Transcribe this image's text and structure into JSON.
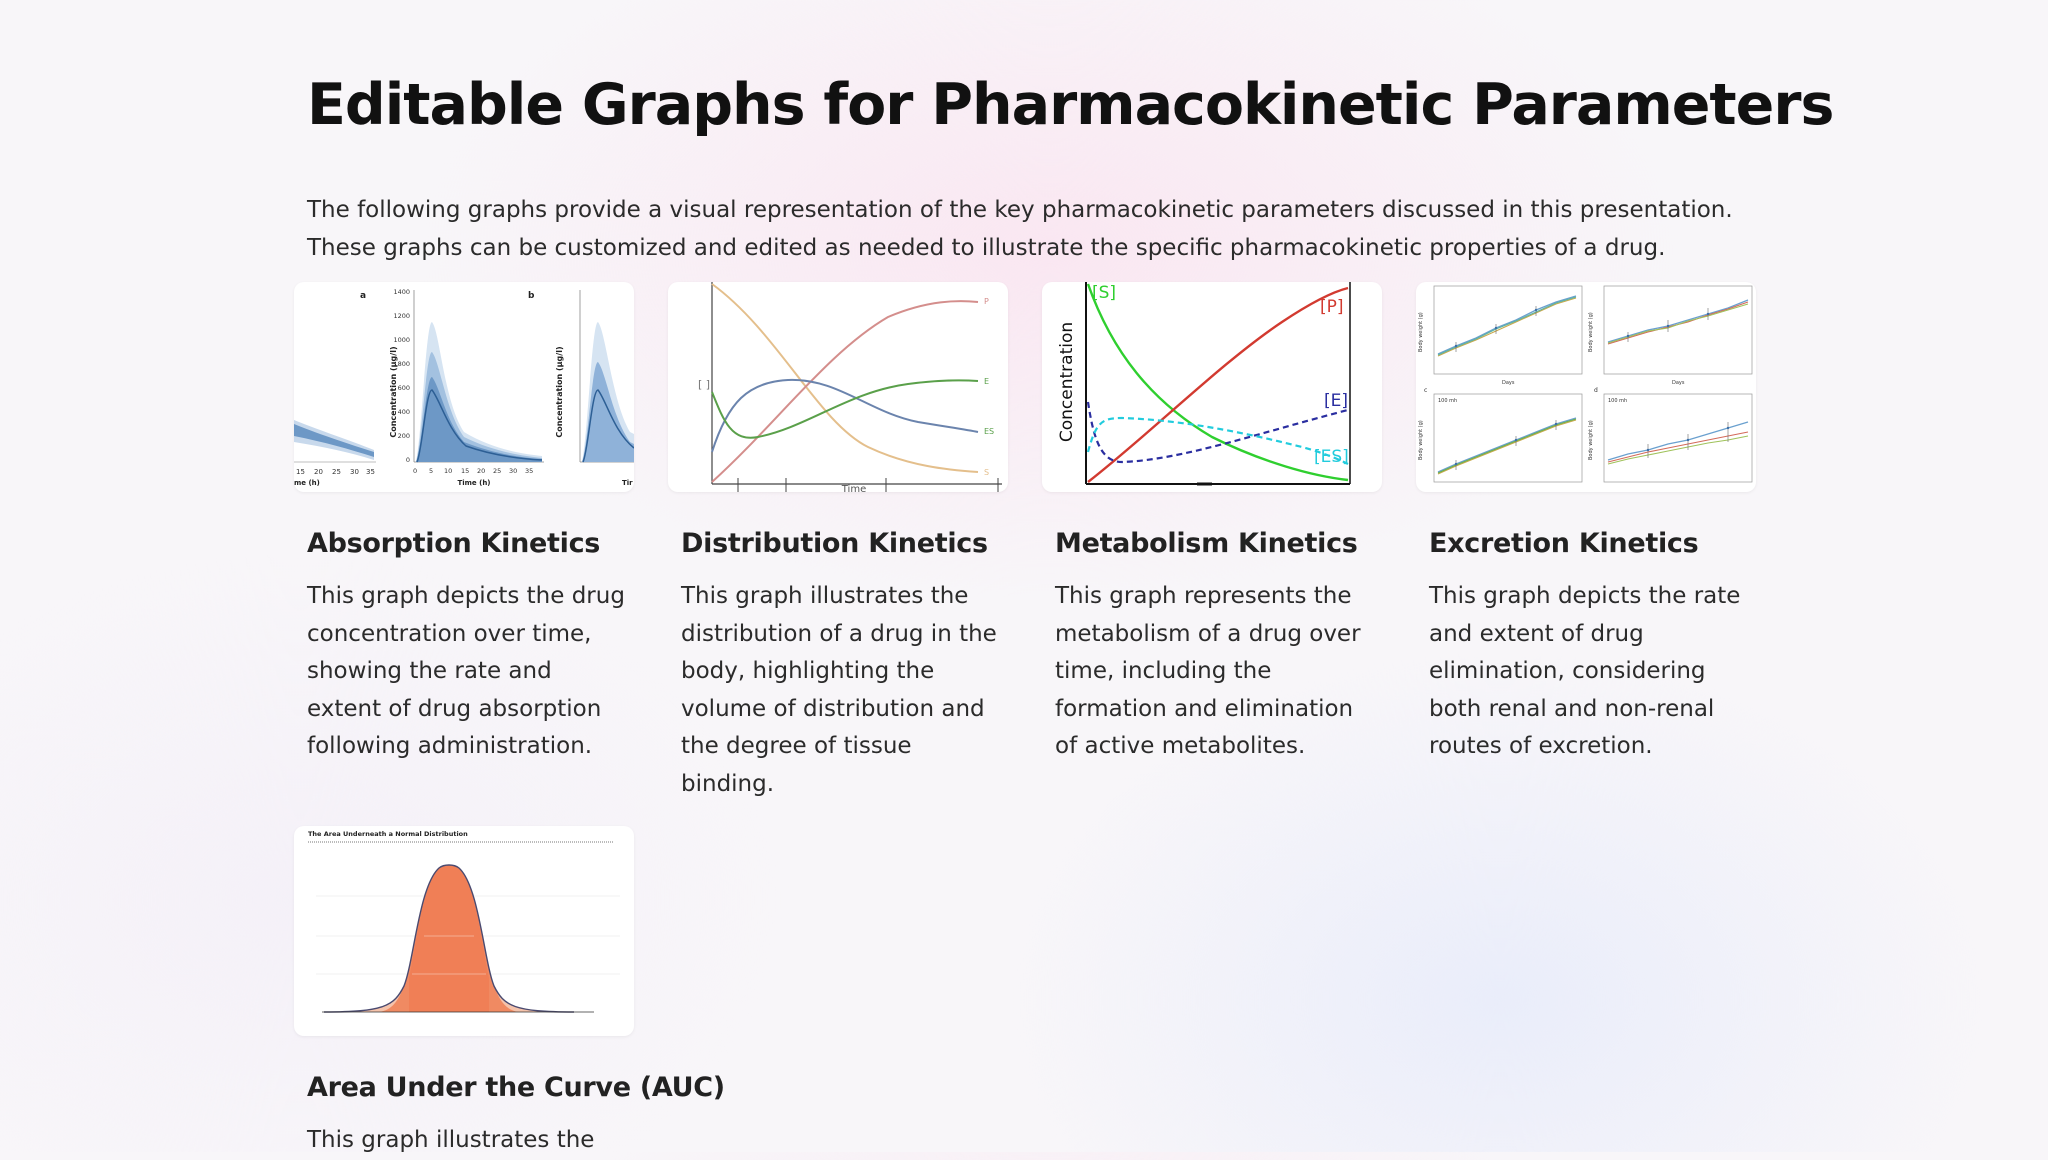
{
  "page": {
    "title": "Editable Graphs for Pharmacokinetic Parameters",
    "intro": "The following graphs provide a visual representation of the key pharmacokinetic parameters discussed in this presentation. These graphs can be customized and edited as needed to illustrate the specific pharmacokinetic properties of a drug."
  },
  "cards": [
    {
      "title": "Absorption Kinetics",
      "description": "This graph depicts the drug concentration over time, showing the rate and extent of drug absorption following administration.",
      "image": {
        "panel_a": "a",
        "panel_b": "b",
        "ylabel": "Concentration (μg/l)",
        "xlabel": "Time (h)",
        "xlabel_left_cut": "me (h)",
        "xlabel_right_cut": "Tir",
        "y_ticks": [
          "1400",
          "1200",
          "1000",
          "800",
          "600",
          "400",
          "200",
          "0"
        ],
        "x_ticks": [
          "0",
          "5",
          "10",
          "15",
          "20",
          "25",
          "30",
          "35"
        ],
        "left_x_ticks": [
          "15",
          "20",
          "25",
          "30",
          "35"
        ]
      }
    },
    {
      "title": "Distribution Kinetics",
      "description": "This graph illustrates the distribution of a drug in the body, highlighting the volume of distribution and the degree of tissue binding.",
      "image": {
        "ylabel": "[ ]",
        "xlabel": "Time",
        "labels": {
          "P": "P",
          "E": "E",
          "ES": "ES",
          "S": "S"
        }
      }
    },
    {
      "title": "Metabolism Kinetics",
      "description": "This graph represents the metabolism of a drug over time, including the formation and elimination of active metabolites.",
      "image": {
        "ylabel": "Concentration",
        "labels": {
          "S": "[S]",
          "P": "[P]",
          "E": "[E]",
          "ES": "[ES]"
        }
      }
    },
    {
      "title": "Excretion Kinetics",
      "description": "This graph depicts the rate and extent of drug elimination, considering both renal and non-renal routes of excretion.",
      "image": {
        "panel_c": "c",
        "panel_d": "d",
        "ylabel": "Body weight (g)",
        "xlabel": "Days",
        "inset": "100 mh"
      }
    },
    {
      "title": "Area Under the Curve (AUC)",
      "description": "This graph illustrates the",
      "image": {
        "chart_title": "The Area Underneath a Normal Distribution"
      }
    }
  ],
  "colors": {
    "blue_band": "#4a7fb5",
    "orange_fill": "#f07f56",
    "green": "#2fcf2f",
    "red": "#d23a30",
    "navy": "#2a2ea0",
    "cyan": "#22ccdd"
  }
}
